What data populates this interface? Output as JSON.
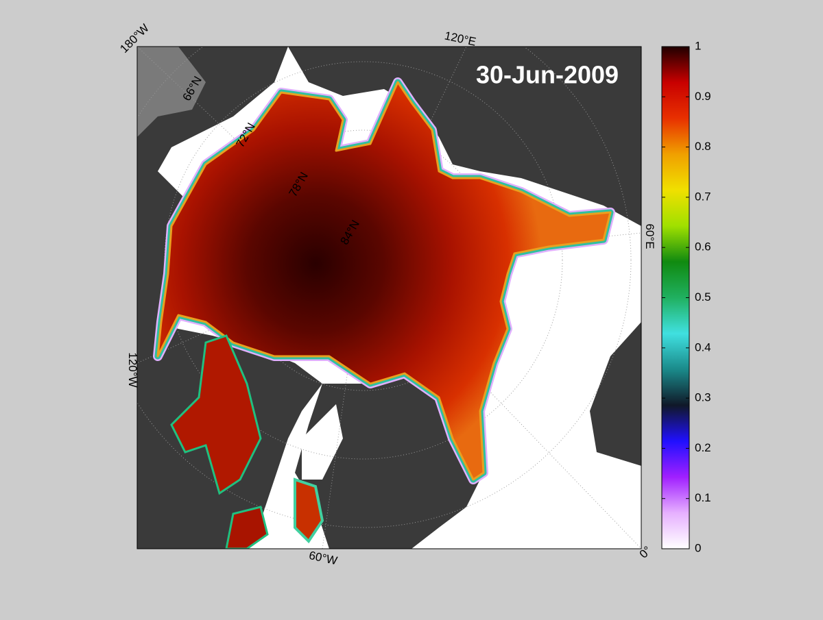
{
  "map": {
    "date": "30-Jun-2009",
    "longitude_labels": [
      "180°W",
      "120°E",
      "60°E",
      "0°",
      "60°W",
      "120°W"
    ],
    "latitude_labels": [
      "66°N",
      "72°N",
      "78°N",
      "84°N"
    ]
  },
  "colorbar": {
    "lim": [
      0,
      1
    ],
    "ticks": [
      0,
      0.1,
      0.2,
      0.3,
      0.4,
      0.5,
      0.6,
      0.7,
      0.8,
      0.9,
      1
    ],
    "colors": [
      "#ffffff",
      "#e6b0ff",
      "#a020ff",
      "#2010ff",
      "#101828",
      "#1a8a8a",
      "#40e0e0",
      "#20b060",
      "#108a10",
      "#a0e000",
      "#f0e000",
      "#f0a000",
      "#e83000",
      "#c80000",
      "#200000"
    ]
  }
}
